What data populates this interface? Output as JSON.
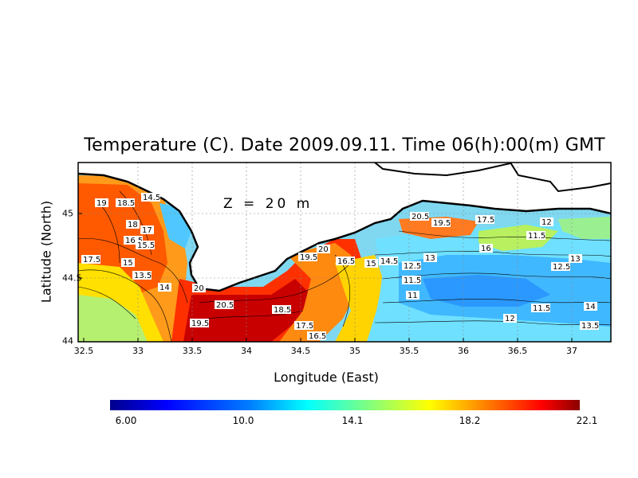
{
  "title": "Temperature (C). Date 2009.09.11. Time 06(h):00(m) GMT",
  "depth_label": "Z = 20 m",
  "axes": {
    "xlabel": "Longitude (East)",
    "ylabel": "Latitude (North)",
    "x_ticks": [
      "32.5",
      "33",
      "33.5",
      "34",
      "34.5",
      "35",
      "35.5",
      "36",
      "36.5",
      "37"
    ],
    "y_ticks": [
      "45",
      "44.5",
      "44"
    ]
  },
  "colorbar": {
    "min": 6.0,
    "max": 22.1,
    "tick_labels": [
      "6.00",
      "10.0",
      "14.1",
      "18.2",
      "22.1"
    ],
    "colors": [
      "#00008b",
      "#0000ff",
      "#0080ff",
      "#00ffff",
      "#80ff80",
      "#ffff00",
      "#ff8000",
      "#ff0000",
      "#8b0000"
    ]
  },
  "contour_labels": [
    "19",
    "18.5",
    "14.5",
    "18",
    "17",
    "16.5",
    "15.5",
    "17.5",
    "15",
    "13.5",
    "14",
    "20",
    "20.5",
    "19.5",
    "18.5",
    "17.5",
    "16.5",
    "20",
    "19.5",
    "16.5",
    "15",
    "14.5",
    "12.5",
    "13",
    "11.5",
    "11",
    "20.5",
    "19.5",
    "17.5",
    "16",
    "12",
    "13",
    "12.5",
    "11.5",
    "14",
    "13.5",
    "11.5",
    "12"
  ]
}
